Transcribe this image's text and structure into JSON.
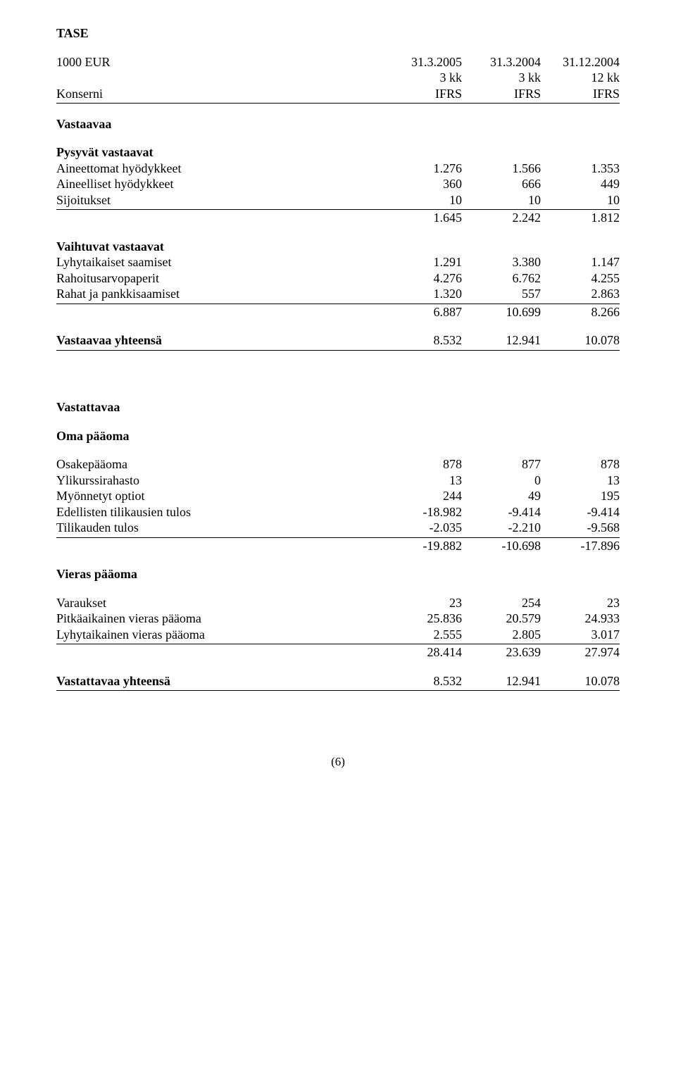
{
  "title": "TASE",
  "header": {
    "col0": "1000 EUR",
    "dates": [
      "31.3.2005",
      "31.3.2004",
      "31.12.2004"
    ],
    "periods": [
      "3 kk",
      "3 kk",
      "12 kk"
    ],
    "consern": [
      "Konserni",
      "IFRS",
      "IFRS",
      "IFRS"
    ]
  },
  "assets": {
    "section": "Vastaavaa",
    "fixed": {
      "heading": "Pysyvät vastaavat",
      "rows": [
        {
          "label": "Aineettomat hyödykkeet",
          "v": [
            "1.276",
            "1.566",
            "1.353"
          ]
        },
        {
          "label": "Aineelliset hyödykkeet",
          "v": [
            "360",
            "666",
            "449"
          ]
        },
        {
          "label": "Sijoitukset",
          "v": [
            "10",
            "10",
            "10"
          ]
        }
      ],
      "subtotal": [
        "1.645",
        "2.242",
        "1.812"
      ]
    },
    "current": {
      "heading": "Vaihtuvat vastaavat",
      "rows": [
        {
          "label": "Lyhytaikaiset saamiset",
          "v": [
            "1.291",
            "3.380",
            "1.147"
          ]
        },
        {
          "label": "Rahoitusarvopaperit",
          "v": [
            "4.276",
            "6.762",
            "4.255"
          ]
        },
        {
          "label": "Rahat ja pankkisaamiset",
          "v": [
            "1.320",
            "557",
            "2.863"
          ]
        }
      ],
      "subtotal": [
        "6.887",
        "10.699",
        "8.266"
      ]
    },
    "total": {
      "label": "Vastaavaa yhteensä",
      "v": [
        "8.532",
        "12.941",
        "10.078"
      ]
    }
  },
  "liab": {
    "section": "Vastattavaa",
    "equity": {
      "heading": "Oma pääoma",
      "rows": [
        {
          "label": "Osakepääoma",
          "v": [
            "878",
            "877",
            "878"
          ]
        },
        {
          "label": "Ylikurssirahasto",
          "v": [
            "13",
            "0",
            "13"
          ]
        },
        {
          "label": "Myönnetyt optiot",
          "v": [
            "244",
            "49",
            "195"
          ]
        },
        {
          "label": "Edellisten tilikausien tulos",
          "v": [
            "-18.982",
            "-9.414",
            "-9.414"
          ]
        },
        {
          "label": "Tilikauden tulos",
          "v": [
            "-2.035",
            "-2.210",
            "-9.568"
          ]
        }
      ],
      "subtotal": [
        "-19.882",
        "-10.698",
        "-17.896"
      ]
    },
    "foreign": {
      "heading": "Vieras pääoma",
      "rows": [
        {
          "label": "Varaukset",
          "v": [
            "23",
            "254",
            "23"
          ]
        },
        {
          "label": "Pitkäaikainen vieras pääoma",
          "v": [
            "25.836",
            "20.579",
            "24.933"
          ]
        },
        {
          "label": "Lyhytaikainen vieras pääoma",
          "v": [
            "2.555",
            "2.805",
            "3.017"
          ]
        }
      ],
      "subtotal": [
        "28.414",
        "23.639",
        "27.974"
      ]
    },
    "total": {
      "label": "Vastattavaa yhteensä",
      "v": [
        "8.532",
        "12.941",
        "10.078"
      ]
    }
  },
  "footer": "(6)"
}
